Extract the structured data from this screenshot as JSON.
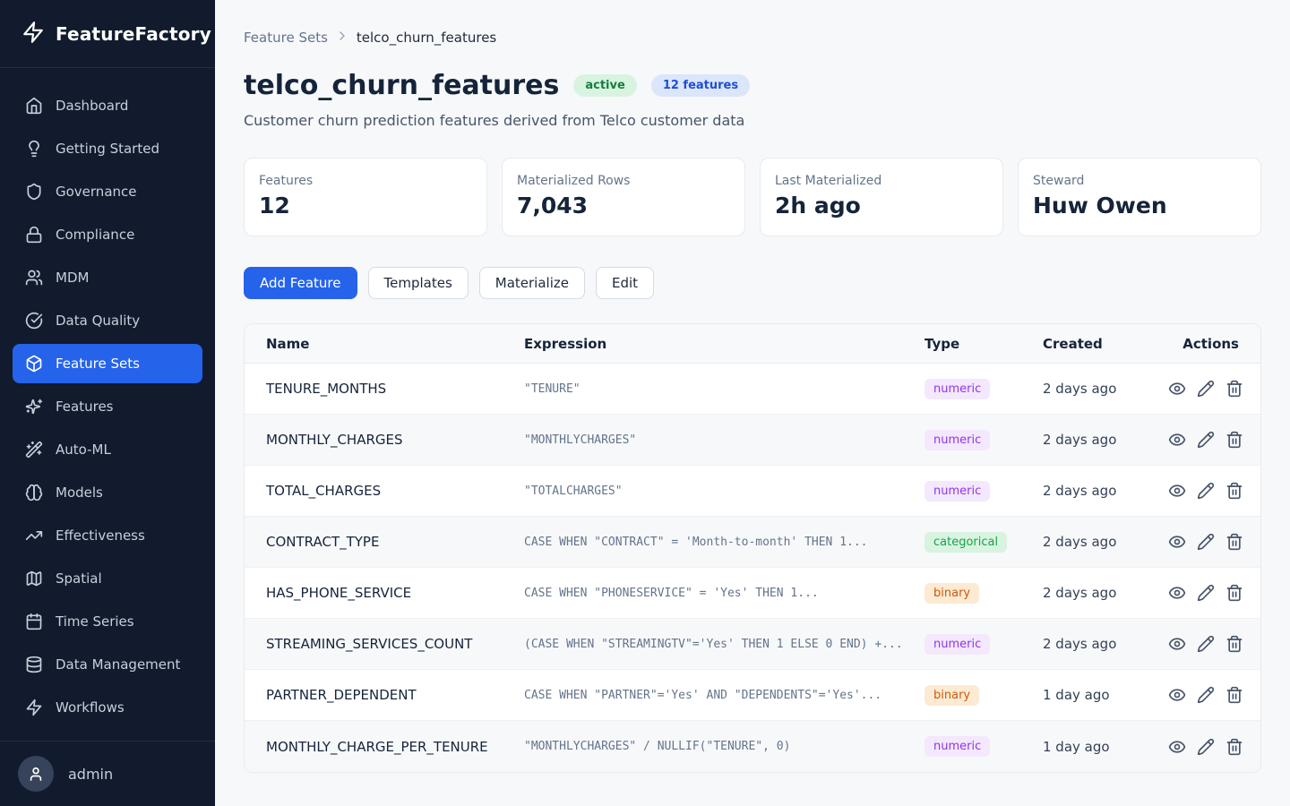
{
  "app": {
    "name": "FeatureFactory"
  },
  "colors": {
    "accent": "#2563eb",
    "sidebar_bg": "#111b2d",
    "status_active_bg": "#d9f3e1",
    "status_active_text": "#15803d",
    "count_badge_bg": "#dbe6fb",
    "count_badge_text": "#1d4ed8",
    "type_numeric": {
      "bg": "#f3e8fd",
      "text": "#9333ea"
    },
    "type_categorical": {
      "bg": "#d9f3e1",
      "text": "#16a34a"
    },
    "type_binary": {
      "bg": "#fdead2",
      "text": "#cb5a0d"
    }
  },
  "sidebar": {
    "items": [
      {
        "label": "Dashboard",
        "icon": "home",
        "active": false
      },
      {
        "label": "Getting Started",
        "icon": "lightbulb",
        "active": false
      },
      {
        "label": "Governance",
        "icon": "shield",
        "active": false
      },
      {
        "label": "Compliance",
        "icon": "lock",
        "active": false
      },
      {
        "label": "MDM",
        "icon": "users",
        "active": false
      },
      {
        "label": "Data Quality",
        "icon": "check-circle",
        "active": false
      },
      {
        "label": "Feature Sets",
        "icon": "cube",
        "active": true
      },
      {
        "label": "Features",
        "icon": "sparkles",
        "active": false
      },
      {
        "label": "Auto-ML",
        "icon": "wand",
        "active": false
      },
      {
        "label": "Models",
        "icon": "brain",
        "active": false
      },
      {
        "label": "Effectiveness",
        "icon": "trending-up",
        "active": false
      },
      {
        "label": "Spatial",
        "icon": "map",
        "active": false
      },
      {
        "label": "Time Series",
        "icon": "calendar",
        "active": false
      },
      {
        "label": "Data Management",
        "icon": "database",
        "active": false
      },
      {
        "label": "Workflows",
        "icon": "zap",
        "active": false
      }
    ],
    "user": {
      "name": "admin"
    }
  },
  "breadcrumb": {
    "parent": "Feature Sets",
    "current": "telco_churn_features"
  },
  "header": {
    "title": "telco_churn_features",
    "status_badge": "active",
    "count_badge": "12 features",
    "description": "Customer churn prediction features derived from Telco customer data"
  },
  "stats": [
    {
      "label": "Features",
      "value": "12"
    },
    {
      "label": "Materialized Rows",
      "value": "7,043"
    },
    {
      "label": "Last Materialized",
      "value": "2h ago"
    },
    {
      "label": "Steward",
      "value": "Huw Owen"
    }
  ],
  "toolbar": {
    "add_feature": "Add Feature",
    "templates": "Templates",
    "materialize": "Materialize",
    "edit": "Edit"
  },
  "table": {
    "columns": [
      "Name",
      "Expression",
      "Type",
      "Created",
      "Actions"
    ],
    "rows": [
      {
        "name": "TENURE_MONTHS",
        "expression": "\"TENURE\"",
        "type": "numeric",
        "created": "2 days ago"
      },
      {
        "name": "MONTHLY_CHARGES",
        "expression": "\"MONTHLYCHARGES\"",
        "type": "numeric",
        "created": "2 days ago"
      },
      {
        "name": "TOTAL_CHARGES",
        "expression": "\"TOTALCHARGES\"",
        "type": "numeric",
        "created": "2 days ago"
      },
      {
        "name": "CONTRACT_TYPE",
        "expression": "CASE WHEN \"CONTRACT\" = 'Month-to-month' THEN 1...",
        "type": "categorical",
        "created": "2 days ago"
      },
      {
        "name": "HAS_PHONE_SERVICE",
        "expression": "CASE WHEN \"PHONESERVICE\" = 'Yes' THEN 1...",
        "type": "binary",
        "created": "2 days ago"
      },
      {
        "name": "STREAMING_SERVICES_COUNT",
        "expression": "(CASE WHEN \"STREAMINGTV\"='Yes' THEN 1 ELSE 0 END) +...",
        "type": "numeric",
        "created": "2 days ago"
      },
      {
        "name": "PARTNER_DEPENDENT",
        "expression": "CASE WHEN \"PARTNER\"='Yes' AND \"DEPENDENTS\"='Yes'...",
        "type": "binary",
        "created": "1 day ago"
      },
      {
        "name": "MONTHLY_CHARGE_PER_TENURE",
        "expression": "\"MONTHLYCHARGES\" / NULLIF(\"TENURE\", 0)",
        "type": "numeric",
        "created": "1 day ago"
      }
    ],
    "actions": [
      {
        "name": "view",
        "icon": "eye"
      },
      {
        "name": "edit",
        "icon": "pencil"
      },
      {
        "name": "delete",
        "icon": "trash"
      }
    ]
  }
}
